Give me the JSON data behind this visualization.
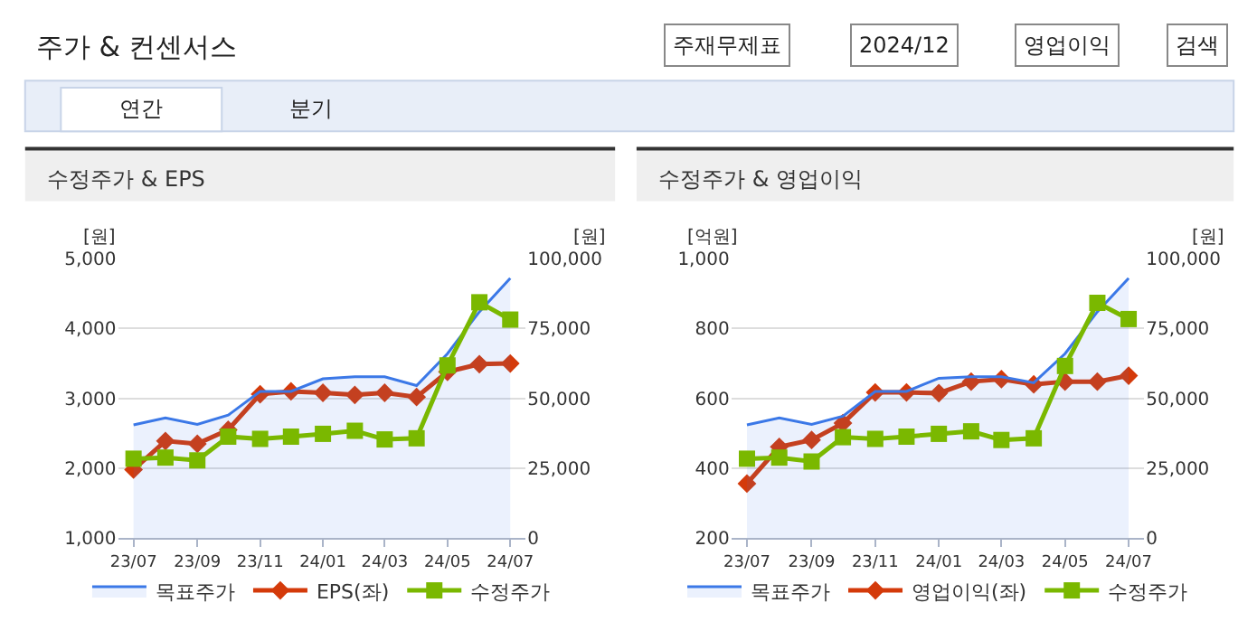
{
  "chart_data": [
    {
      "type": "line",
      "title": "수정주가 & EPS",
      "ylabel": "[원]",
      "y2label": "[원]",
      "annotations": [
        "주가 & 컨센서스",
        "주재무제표",
        "2024/12",
        "영업이익",
        "검색",
        "연간",
        "분기"
      ],
      "x": [
        "2023-07",
        "2023-08",
        "2023-09",
        "2023-10",
        "2023-11",
        "2023-12",
        "2024-01",
        "2024-02",
        "2024-03",
        "2024-04",
        "2024-05",
        "2024-06",
        "2024-07"
      ],
      "series": [
        {
          "name": "목표주가",
          "type": "area",
          "axis": "y2",
          "color": "#3b78e7",
          "marker": "none",
          "values": [
            40500,
            43000,
            40700,
            44000,
            52500,
            52500,
            57000,
            57700,
            57700,
            54600,
            66000,
            81000,
            93000
          ]
        },
        {
          "name": "EPS(좌)",
          "color": "#d43a0a",
          "marker": "diamond",
          "values": [
            1980,
            2390,
            2350,
            2550,
            3060,
            3100,
            3080,
            3050,
            3080,
            3020,
            3380,
            3490,
            3500
          ]
        },
        {
          "name": "수정주가",
          "axis": "y2",
          "color": "#7ab800",
          "marker": "square",
          "values": [
            28400,
            28800,
            27800,
            36300,
            35500,
            36300,
            37300,
            38400,
            35300,
            35700,
            61800,
            84400,
            78200
          ]
        }
      ],
      "xlim": [
        "2023-06-16",
        "2024-07-16"
      ],
      "xticks": [
        {
          "value": "2023-07",
          "label": "23/07"
        },
        {
          "value": "2023-09",
          "label": "23/09"
        },
        {
          "value": "2023-11",
          "label": "23/11"
        },
        {
          "value": "2024-01",
          "label": "24/01"
        },
        {
          "value": "2024-03",
          "label": "24/03"
        },
        {
          "value": "2024-05",
          "label": "24/05"
        },
        {
          "value": "2024-07",
          "label": "24/07"
        }
      ],
      "ylim": [
        1000,
        5000
      ],
      "yticks": [
        {
          "value": 1000,
          "label": "1,000"
        },
        {
          "value": 2000,
          "label": "2,000"
        },
        {
          "value": 3000,
          "label": "3,000"
        },
        {
          "value": 4000,
          "label": "4,000"
        },
        {
          "value": 5000,
          "label": "5,000"
        }
      ],
      "y2lim": [
        0,
        100000
      ],
      "y2ticks": [
        0,
        {
          "value": 25000,
          "label": "25,000"
        },
        {
          "value": 50000,
          "label": "50,000"
        },
        {
          "value": 75000,
          "label": "75,000"
        },
        {
          "value": 100000,
          "label": "100,000"
        }
      ],
      "grid": "y",
      "legend": "bottom"
    },
    {
      "type": "line",
      "title": "수정주가 & 영업이익",
      "ylabel": "[억원]",
      "y2label": "[원]",
      "x": [
        "2023-07",
        "2023-08",
        "2023-09",
        "2023-10",
        "2023-11",
        "2023-12",
        "2024-01",
        "2024-02",
        "2024-03",
        "2024-04",
        "2024-05",
        "2024-06",
        "2024-07"
      ],
      "series": [
        {
          "name": "목표주가",
          "type": "area",
          "axis": "y2",
          "color": "#3b78e7",
          "marker": "none",
          "values": [
            40500,
            43000,
            40700,
            43600,
            52500,
            52500,
            57200,
            57700,
            57700,
            55600,
            66000,
            81000,
            93000
          ]
        },
        {
          "name": "영업이익(좌)",
          "color": "#d43a0a",
          "marker": "diamond",
          "values": [
            356,
            461,
            481,
            529,
            617,
            617,
            615,
            648,
            655,
            640,
            648,
            648,
            665
          ]
        },
        {
          "name": "수정주가",
          "axis": "y2",
          "color": "#7ab800",
          "marker": "square",
          "values": [
            28400,
            28800,
            27400,
            36100,
            35500,
            36300,
            37300,
            38200,
            35100,
            35700,
            61600,
            84200,
            78400
          ]
        }
      ],
      "xlim": [
        "2023-06-16",
        "2024-07-16"
      ],
      "xticks": [
        {
          "value": "2023-07",
          "label": "23/07"
        },
        {
          "value": "2023-09",
          "label": "23/09"
        },
        {
          "value": "2023-11",
          "label": "23/11"
        },
        {
          "value": "2024-01",
          "label": "24/01"
        },
        {
          "value": "2024-03",
          "label": "24/03"
        },
        {
          "value": "2024-05",
          "label": "24/05"
        },
        {
          "value": "2024-07",
          "label": "24/07"
        }
      ],
      "ylim": [
        200,
        1000
      ],
      "yticks": [
        200,
        400,
        600,
        800,
        {
          "value": 1000,
          "label": "1,000"
        }
      ],
      "y2lim": [
        0,
        100000
      ],
      "y2ticks": [
        0,
        {
          "value": 25000,
          "label": "25,000"
        },
        {
          "value": 50000,
          "label": "50,000"
        },
        {
          "value": 75000,
          "label": "75,000"
        },
        {
          "value": 100000,
          "label": "100,000"
        }
      ],
      "grid": "y",
      "legend": "bottom"
    }
  ]
}
